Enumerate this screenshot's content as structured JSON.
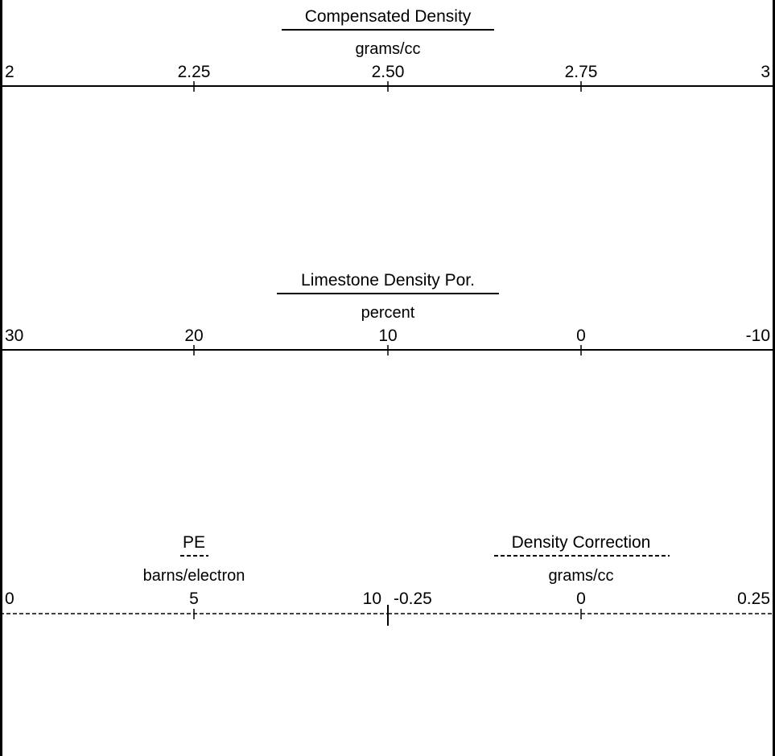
{
  "chart_data": {
    "type": "table",
    "tracks": [
      {
        "title": "Compensated Density",
        "unit": "grams/cc",
        "tick_labels": [
          "2",
          "2.25",
          "2.50",
          "2.75",
          "3"
        ],
        "range": [
          2,
          3
        ],
        "line_style": "solid"
      },
      {
        "title": "Limestone Density Por.",
        "unit": "percent",
        "tick_labels": [
          "30",
          "20",
          "10",
          "0",
          "-10"
        ],
        "range": [
          30,
          -10
        ],
        "line_style": "solid"
      },
      {
        "title": "PE",
        "unit": "barns/electron",
        "tick_labels": [
          "0",
          "5",
          "10"
        ],
        "range": [
          0,
          10
        ],
        "line_style": "dashed"
      },
      {
        "title": "Density Correction",
        "unit": "grams/cc",
        "tick_labels": [
          "-0.25",
          "0",
          "0.25"
        ],
        "range": [
          -0.25,
          0.25
        ],
        "line_style": "dashed"
      }
    ]
  }
}
